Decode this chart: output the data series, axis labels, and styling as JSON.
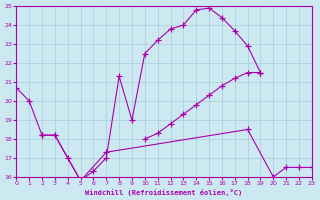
{
  "xlabel": "Windchill (Refroidissement éolien,°C)",
  "background_color": "#cce8f0",
  "grid_color": "#aaccd8",
  "line_color": "#aa00aa",
  "xlim": [
    0,
    23
  ],
  "ylim": [
    16,
    25
  ],
  "xticks": [
    0,
    1,
    2,
    3,
    4,
    5,
    6,
    7,
    8,
    9,
    10,
    11,
    12,
    13,
    14,
    15,
    16,
    17,
    18,
    19,
    20,
    21,
    22,
    23
  ],
  "yticks": [
    16,
    17,
    18,
    19,
    20,
    21,
    22,
    23,
    24,
    25
  ],
  "lines": [
    {
      "x": [
        0,
        1,
        2,
        3,
        4,
        5,
        6,
        7,
        8,
        9,
        10,
        11,
        12,
        13,
        14,
        15,
        16,
        17,
        18,
        19
      ],
      "y": [
        20.7,
        20.0,
        18.2,
        18.2,
        17.0,
        15.8,
        16.3,
        17.0,
        21.3,
        19.0,
        22.5,
        23.2,
        23.8,
        24.0,
        24.8,
        24.9,
        24.4,
        23.7,
        22.9,
        21.5
      ]
    },
    {
      "x": [
        2,
        3,
        5,
        7,
        18,
        20,
        21,
        22,
        23
      ],
      "y": [
        18.2,
        18.2,
        15.8,
        17.3,
        18.5,
        16.0,
        16.5,
        16.5,
        16.5
      ]
    },
    {
      "x": [
        10,
        11,
        12,
        13,
        14,
        15,
        16,
        17,
        18,
        19
      ],
      "y": [
        18.0,
        18.3,
        18.8,
        19.3,
        19.8,
        20.3,
        20.8,
        21.2,
        21.5,
        21.5
      ]
    }
  ]
}
